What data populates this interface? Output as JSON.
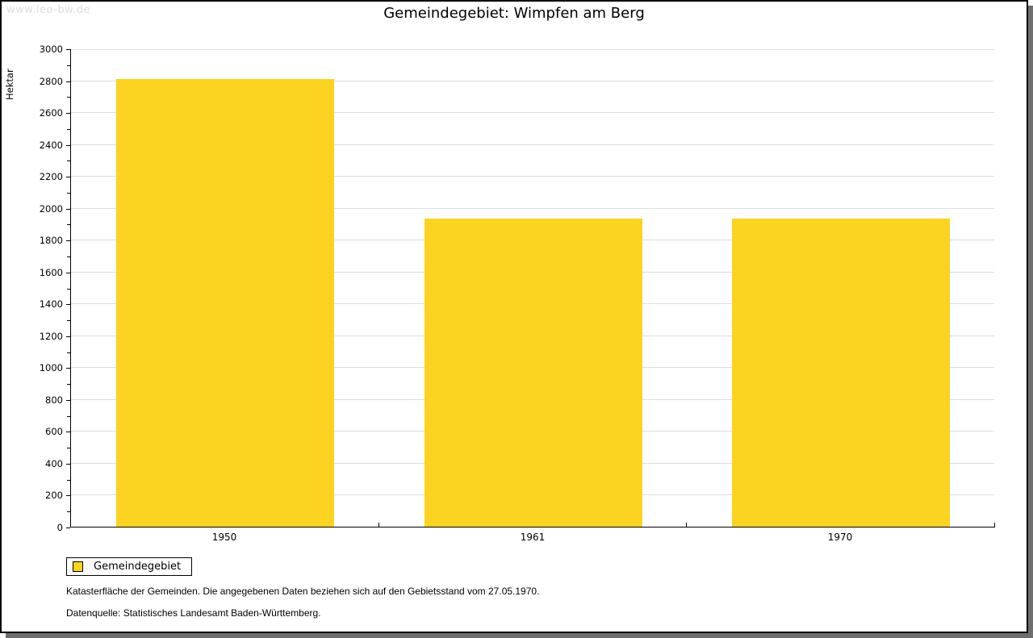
{
  "watermark": "www.leo-bw.de",
  "chart_data": {
    "type": "bar",
    "title": "Gemeindegebiet: Wimpfen am Berg",
    "categories": [
      "1950",
      "1961",
      "1970"
    ],
    "series": [
      {
        "name": "Gemeindegebiet",
        "values": [
          2810,
          1935,
          1935
        ]
      }
    ],
    "xlabel": "",
    "ylabel": "Hektar",
    "ylim": [
      0,
      3000
    ],
    "y_major_step": 200,
    "y_minor_step": 100,
    "grid": true,
    "legend_position": "bottom-left",
    "bar_color": "#FCD320"
  },
  "legend": {
    "items": [
      {
        "label": "Gemeindegebiet",
        "color": "#FCD320"
      }
    ]
  },
  "footer": {
    "line1": "Katasterfläche der Gemeinden. Die angegebenen Daten beziehen sich auf den Gebietsstand vom 27.05.1970.",
    "line2": "Datenquelle: Statistisches Landesamt Baden-Württemberg."
  },
  "colors": {
    "bar": "#FCD320",
    "grid": "#DCDCDC",
    "axis": "#000000",
    "watermark": "#DDDDDD",
    "shadow": "#6E6E6E"
  }
}
